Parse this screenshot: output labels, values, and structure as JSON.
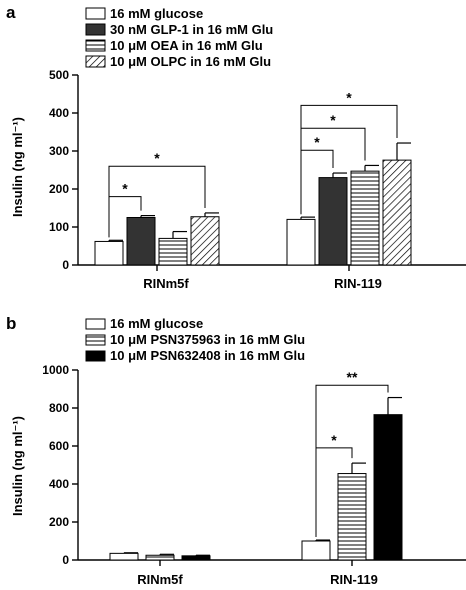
{
  "chart_data": [
    {
      "panel": "a",
      "type": "bar",
      "ylabel": "Insulin (ng ml⁻¹)",
      "ylim": [
        0,
        500
      ],
      "yticks": [
        0,
        100,
        200,
        300,
        400,
        500
      ],
      "categories": [
        "RINm5f",
        "RIN-119"
      ],
      "legend_position": "top-left",
      "grid": false,
      "series": [
        {
          "name": "16 mM glucose",
          "fill": "white",
          "values": [
            62,
            120
          ],
          "errors": [
            3,
            6
          ]
        },
        {
          "name": "30 nM GLP-1 in 16 mM Glu",
          "fill": "dark",
          "values": [
            125,
            230
          ],
          "errors": [
            5,
            12
          ]
        },
        {
          "name": "10 μM OEA in 16 mM Glu",
          "fill": "hstripe",
          "values": [
            70,
            247
          ],
          "errors": [
            18,
            15
          ]
        },
        {
          "name": "10 μM OLPC in 16 mM Glu",
          "fill": "diagonal",
          "values": [
            127,
            276
          ],
          "errors": [
            10,
            45
          ]
        }
      ],
      "significance": [
        {
          "group": 0,
          "from": 0,
          "to": 1,
          "label": "*",
          "y": 180
        },
        {
          "group": 0,
          "from": 0,
          "to": 3,
          "label": "*",
          "y": 260
        },
        {
          "group": 1,
          "from": 0,
          "to": 1,
          "label": "*",
          "y": 302
        },
        {
          "group": 1,
          "from": 0,
          "to": 2,
          "label": "*",
          "y": 360
        },
        {
          "group": 1,
          "from": 0,
          "to": 3,
          "label": "*",
          "y": 420
        }
      ]
    },
    {
      "panel": "b",
      "type": "bar",
      "ylabel": "Insulin (ng ml⁻¹)",
      "ylim": [
        0,
        1000
      ],
      "yticks": [
        0,
        200,
        400,
        600,
        800,
        1000
      ],
      "categories": [
        "RINm5f",
        "RIN-119"
      ],
      "legend_position": "top-left",
      "grid": false,
      "series": [
        {
          "name": "16 mM glucose",
          "fill": "white",
          "values": [
            35,
            100
          ],
          "errors": [
            3,
            5
          ]
        },
        {
          "name": "10 μM PSN375963 in 16 mM Glu",
          "fill": "hstripe",
          "values": [
            25,
            455
          ],
          "errors": [
            5,
            55
          ]
        },
        {
          "name": "10 μM PSN632408 in 16 mM Glu",
          "fill": "black",
          "values": [
            22,
            765
          ],
          "errors": [
            3,
            90
          ]
        }
      ],
      "significance": [
        {
          "group": 1,
          "from": 0,
          "to": 1,
          "label": "*",
          "y": 590
        },
        {
          "group": 1,
          "from": 0,
          "to": 2,
          "label": "**",
          "y": 920
        }
      ]
    }
  ],
  "panels": [
    {
      "letter": "a",
      "legend": [
        "16 mM glucose",
        "30 nM GLP-1 in 16 mM Glu",
        "10 μM OEA in 16 mM Glu",
        "10 μM OLPC in 16 mM Glu"
      ]
    },
    {
      "letter": "b",
      "legend": [
        "16 mM glucose",
        "10 μM PSN375963 in 16 mM Glu",
        "10 μM PSN632408 in 16 mM Glu"
      ]
    }
  ]
}
